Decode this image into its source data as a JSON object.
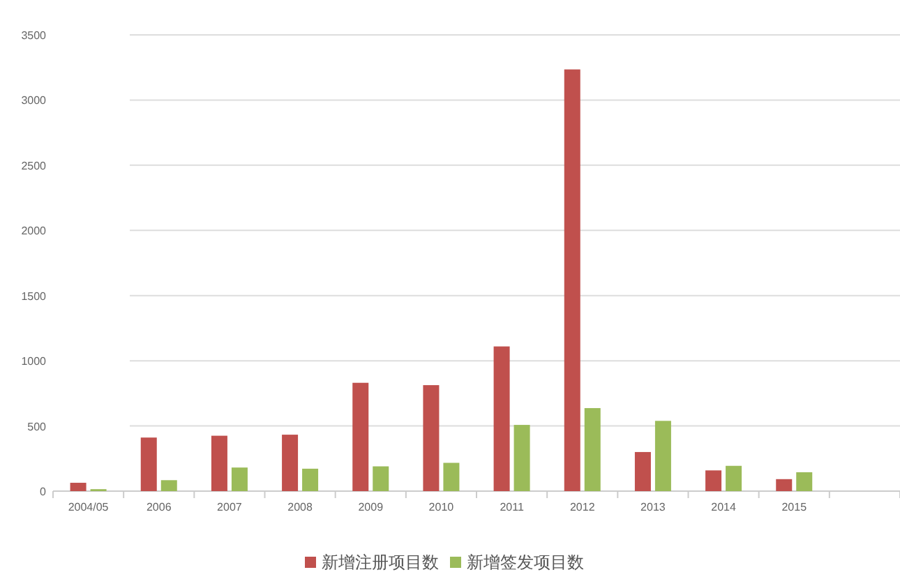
{
  "chart_data": {
    "type": "bar",
    "categories": [
      "2004/05",
      "2006",
      "2007",
      "2008",
      "2009",
      "2010",
      "2011",
      "2012",
      "2013",
      "2014",
      "2015",
      null
    ],
    "series": [
      {
        "name": "新增注册项目数",
        "color": "#c0504d",
        "values": [
          64,
          411,
          425,
          433,
          831,
          813,
          1110,
          3235,
          300,
          159,
          92,
          null
        ]
      },
      {
        "name": "新增签发项目数",
        "color": "#9bbb59",
        "values": [
          15,
          84,
          181,
          172,
          190,
          217,
          508,
          637,
          539,
          194,
          145,
          null
        ]
      }
    ],
    "ylim": [
      0,
      3500
    ],
    "yticks": [
      0,
      500,
      1000,
      1500,
      2000,
      2500,
      3000,
      3500
    ],
    "grid": "y",
    "legend": "bottom"
  }
}
